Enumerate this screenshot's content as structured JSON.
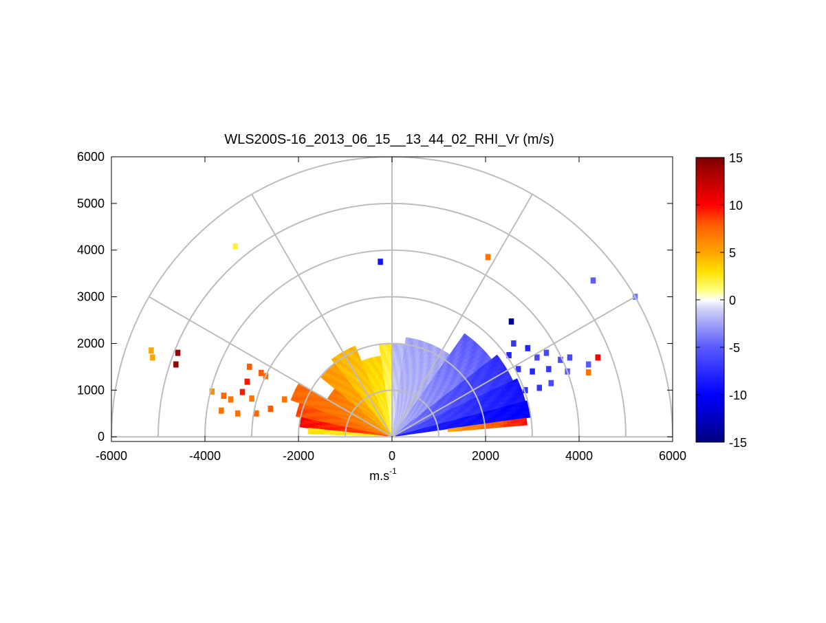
{
  "chart_data": {
    "type": "heatmap",
    "subtype": "polar-rhi-scan",
    "title": "WLS200S-16_2013_06_15__13_44_02_RHI_Vr (m/s)",
    "xlabel": "m.s",
    "xlabel_superscript": "-1",
    "ylabel": "",
    "xlim": [
      -6000,
      6000
    ],
    "ylim": [
      -100,
      6000
    ],
    "xticks": [
      -6000,
      -4000,
      -2000,
      0,
      2000,
      4000,
      6000
    ],
    "xtick_labels": [
      "-6000",
      "-4000",
      "-2000",
      "0",
      "2000",
      "4000",
      "6000"
    ],
    "yticks": [
      0,
      1000,
      2000,
      3000,
      4000,
      5000,
      6000
    ],
    "ytick_labels": [
      "0",
      "1000",
      "2000",
      "3000",
      "4000",
      "5000",
      "6000"
    ],
    "range_rings": [
      1000,
      2000,
      3000,
      4000,
      5000,
      6000
    ],
    "radial_spokes_deg": [
      0,
      30,
      60,
      90,
      120,
      150,
      180
    ],
    "grid": true,
    "colorbar": {
      "min": -15,
      "max": 15,
      "ticks": [
        15,
        10,
        5,
        0,
        -5,
        -10,
        -15
      ],
      "tick_labels": [
        "15",
        "10",
        "5",
        "0",
        "-5",
        "-10",
        "-15"
      ],
      "colormap": "blue-white-red",
      "stops": [
        {
          "v": -15,
          "color": "#00007f"
        },
        {
          "v": -10,
          "color": "#0000ff"
        },
        {
          "v": -5,
          "color": "#5a5aff"
        },
        {
          "v": -1,
          "color": "#cfd0f5"
        },
        {
          "v": 0,
          "color": "#ffffff"
        },
        {
          "v": 1,
          "color": "#ffff80"
        },
        {
          "v": 3,
          "color": "#ffe000"
        },
        {
          "v": 5,
          "color": "#ffa500"
        },
        {
          "v": 8,
          "color": "#ff5a00"
        },
        {
          "v": 10,
          "color": "#ff0000"
        },
        {
          "v": 15,
          "color": "#7f0000"
        }
      ]
    },
    "sectors": [
      {
        "a0": 90,
        "a1": 98,
        "r0": 80,
        "r1": 2000,
        "v0": 0.5,
        "v1": 2.5
      },
      {
        "a0": 98,
        "a1": 112,
        "r0": 80,
        "r1": 1750,
        "v0": 2.0,
        "v1": 3.5
      },
      {
        "a0": 112,
        "a1": 128,
        "r0": 80,
        "r1": 2100,
        "v0": 3.0,
        "v1": 4.5
      },
      {
        "a0": 128,
        "a1": 140,
        "r0": 80,
        "r1": 2000,
        "v0": 4.5,
        "v1": 5.5
      },
      {
        "a0": 140,
        "a1": 150,
        "r0": 80,
        "r1": 1600,
        "v0": 5.0,
        "v1": 7.0
      },
      {
        "a0": 150,
        "a1": 160,
        "r0": 80,
        "r1": 2300,
        "v0": 6.0,
        "v1": 7.5
      },
      {
        "a0": 160,
        "a1": 168,
        "r0": 80,
        "r1": 2100,
        "v0": 6.5,
        "v1": 8.5
      },
      {
        "a0": 168,
        "a1": 174,
        "r0": 80,
        "r1": 2000,
        "v0": 8.0,
        "v1": 10.0
      },
      {
        "a0": 174,
        "a1": 178,
        "r0": 200,
        "r1": 1800,
        "v0": 2.0,
        "v1": 3.0
      },
      {
        "a0": 82,
        "a1": 90,
        "r0": 80,
        "r1": 2000,
        "v0": -0.5,
        "v1": -2.0
      },
      {
        "a0": 55,
        "a1": 82,
        "r0": 80,
        "r1": 2150,
        "v0": -1.5,
        "v1": -2.5
      },
      {
        "a0": 38,
        "a1": 55,
        "r0": 80,
        "r1": 2700,
        "v0": -2.0,
        "v1": -5.0
      },
      {
        "a0": 25,
        "a1": 38,
        "r0": 80,
        "r1": 2850,
        "v0": -3.5,
        "v1": -7.5
      },
      {
        "a0": 15,
        "a1": 25,
        "r0": 80,
        "r1": 2950,
        "v0": -5.0,
        "v1": -9.0
      },
      {
        "a0": 8,
        "a1": 15,
        "r0": 80,
        "r1": 3000,
        "v0": -8.0,
        "v1": -10.0
      },
      {
        "a0": 5,
        "a1": 8,
        "r0": 1200,
        "r1": 2900,
        "v0": 5.0,
        "v1": 10.0
      }
    ],
    "scatter_cells": [
      {
        "x": -5150,
        "y": 1850,
        "v": 5
      },
      {
        "x": -5120,
        "y": 1700,
        "v": 5
      },
      {
        "x": -4580,
        "y": 1800,
        "v": 14
      },
      {
        "x": -4620,
        "y": 1550,
        "v": 14
      },
      {
        "x": -3350,
        "y": 4080,
        "v": 2
      },
      {
        "x": -3100,
        "y": 1180,
        "v": 9.5
      },
      {
        "x": -3200,
        "y": 960,
        "v": 9.5
      },
      {
        "x": -3050,
        "y": 1500,
        "v": 8
      },
      {
        "x": -2800,
        "y": 1370,
        "v": 8
      },
      {
        "x": -2700,
        "y": 1300,
        "v": 7
      },
      {
        "x": -3850,
        "y": 970,
        "v": 6
      },
      {
        "x": -3600,
        "y": 880,
        "v": 7.5
      },
      {
        "x": -3450,
        "y": 800,
        "v": 7
      },
      {
        "x": -3650,
        "y": 560,
        "v": 7
      },
      {
        "x": -3300,
        "y": 500,
        "v": 7
      },
      {
        "x": -2900,
        "y": 500,
        "v": 7.5
      },
      {
        "x": -2600,
        "y": 600,
        "v": 8
      },
      {
        "x": -2300,
        "y": 800,
        "v": 7
      },
      {
        "x": -3000,
        "y": 820,
        "v": 7
      },
      {
        "x": -250,
        "y": 3750,
        "v": -9
      },
      {
        "x": 2050,
        "y": 3850,
        "v": 7
      },
      {
        "x": 2550,
        "y": 2470,
        "v": -14
      },
      {
        "x": 4300,
        "y": 3350,
        "v": -5
      },
      {
        "x": 5200,
        "y": 3000,
        "v": -4
      },
      {
        "x": 2600,
        "y": 2000,
        "v": -7
      },
      {
        "x": 2900,
        "y": 1900,
        "v": -8
      },
      {
        "x": 3100,
        "y": 1700,
        "v": -6
      },
      {
        "x": 2500,
        "y": 1750,
        "v": -8
      },
      {
        "x": 2700,
        "y": 1450,
        "v": -7
      },
      {
        "x": 3000,
        "y": 1400,
        "v": -8
      },
      {
        "x": 3300,
        "y": 1800,
        "v": -6
      },
      {
        "x": 3350,
        "y": 1450,
        "v": -7
      },
      {
        "x": 3600,
        "y": 1650,
        "v": -6
      },
      {
        "x": 3750,
        "y": 1400,
        "v": -5
      },
      {
        "x": 3800,
        "y": 1700,
        "v": -6
      },
      {
        "x": 4200,
        "y": 1550,
        "v": -5
      },
      {
        "x": 3400,
        "y": 1150,
        "v": -6
      },
      {
        "x": 2850,
        "y": 1000,
        "v": -7
      },
      {
        "x": 3150,
        "y": 1050,
        "v": -7
      },
      {
        "x": 4400,
        "y": 1700,
        "v": 10
      },
      {
        "x": 4200,
        "y": 1380,
        "v": 7
      }
    ]
  }
}
